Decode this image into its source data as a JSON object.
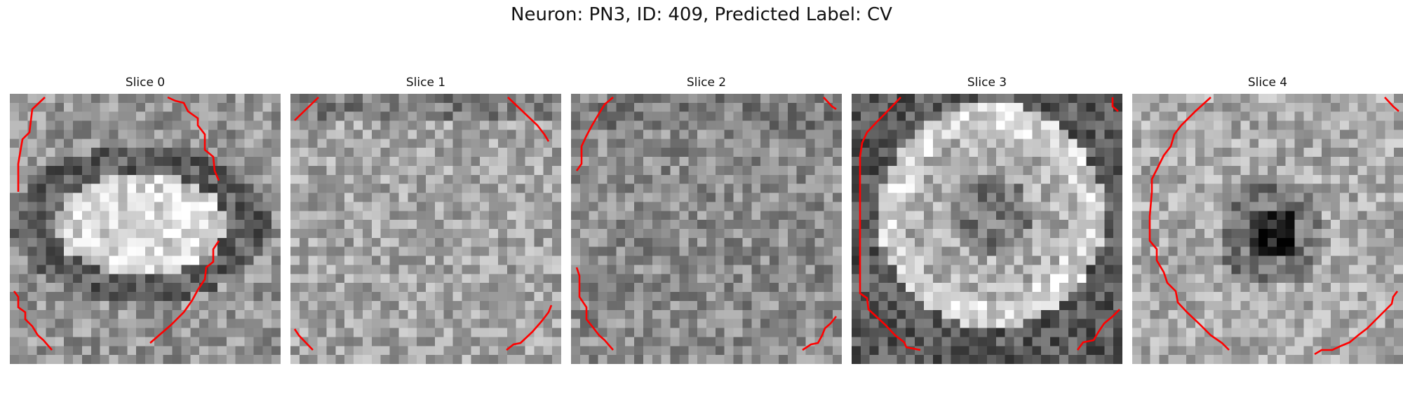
{
  "figure": {
    "title": "Neuron: PN3, ID: 409, Predicted Label: CV"
  },
  "contour_color": "#ff0000",
  "colormap": "grayscale",
  "slices": [
    {
      "title": "Slice 0"
    },
    {
      "title": "Slice 1"
    },
    {
      "title": "Slice 2"
    },
    {
      "title": "Slice 3"
    },
    {
      "title": "Slice 4"
    }
  ]
}
